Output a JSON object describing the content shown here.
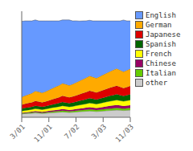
{
  "chart_data": {
    "type": "area",
    "stacked": true,
    "categories": [
      "3/01",
      null,
      null,
      null,
      null,
      null,
      null,
      null,
      "11/01",
      null,
      null,
      null,
      null,
      null,
      null,
      null,
      "7/02",
      null,
      null,
      null,
      null,
      null,
      null,
      null,
      "3/03",
      null,
      null,
      null,
      null,
      null,
      null,
      null,
      "11/03"
    ],
    "series": [
      {
        "name": "other",
        "color": "#cccccc",
        "values": [
          3.5,
          3.8,
          4.0,
          4.2,
          4.5,
          4.3,
          4.0,
          4.2,
          4.5,
          4.8,
          5.0,
          5.2,
          5.5,
          5.3,
          5.0,
          5.2,
          5.5,
          5.8,
          6.0,
          6.2,
          6.5,
          6.3,
          6.0,
          6.2,
          6.5,
          6.8,
          7.0,
          7.2,
          7.5,
          7.3,
          7.0,
          7.2,
          7.5
        ]
      },
      {
        "name": "Italian",
        "color": "#66cc00",
        "values": [
          0.5,
          0.6,
          0.7,
          0.8,
          0.9,
          0.8,
          0.8,
          0.9,
          1.0,
          1.1,
          1.2,
          1.3,
          1.4,
          1.3,
          1.2,
          1.3,
          1.4,
          1.5,
          1.6,
          1.7,
          1.8,
          1.7,
          1.6,
          1.7,
          1.8,
          1.9,
          2.0,
          2.1,
          2.2,
          2.1,
          2.0,
          2.1,
          2.2
        ]
      },
      {
        "name": "Chinese",
        "color": "#990066",
        "values": [
          0.5,
          0.6,
          0.7,
          0.8,
          1.0,
          1.0,
          0.9,
          1.0,
          1.1,
          1.2,
          1.3,
          1.4,
          1.6,
          1.5,
          1.4,
          1.5,
          1.6,
          1.7,
          1.8,
          2.0,
          2.2,
          2.1,
          2.0,
          2.2,
          2.4,
          2.6,
          2.8,
          2.9,
          3.0,
          2.8,
          2.7,
          2.8,
          2.9
        ]
      },
      {
        "name": "French",
        "color": "#ffff00",
        "values": [
          2.0,
          2.1,
          2.2,
          2.3,
          2.5,
          2.4,
          2.3,
          2.4,
          2.6,
          2.8,
          3.0,
          3.2,
          3.4,
          3.3,
          3.2,
          3.3,
          3.5,
          3.7,
          3.9,
          4.1,
          4.3,
          4.2,
          4.1,
          4.3,
          4.5,
          4.7,
          4.9,
          5.1,
          5.3,
          5.1,
          4.9,
          5.1,
          5.3
        ]
      },
      {
        "name": "Spanish",
        "color": "#006600",
        "values": [
          2.5,
          2.6,
          2.7,
          2.8,
          3.0,
          2.9,
          2.8,
          2.9,
          3.1,
          3.3,
          3.5,
          3.7,
          4.0,
          3.9,
          3.8,
          3.9,
          4.1,
          4.3,
          4.5,
          4.7,
          4.9,
          4.8,
          4.7,
          4.9,
          5.1,
          5.3,
          5.5,
          5.7,
          5.9,
          5.7,
          5.5,
          5.7,
          5.9
        ]
      },
      {
        "name": "Japanese",
        "color": "#dd0000",
        "values": [
          4.0,
          4.2,
          4.4,
          4.6,
          4.9,
          4.8,
          4.7,
          4.8,
          5.0,
          5.3,
          5.6,
          5.9,
          6.3,
          6.2,
          6.1,
          6.2,
          6.5,
          6.8,
          7.1,
          7.4,
          7.7,
          7.5,
          7.3,
          7.5,
          7.8,
          8.1,
          8.4,
          8.6,
          8.8,
          8.5,
          8.2,
          8.4,
          8.6
        ]
      },
      {
        "name": "German",
        "color": "#ffaa00",
        "values": [
          8.0,
          8.5,
          9.0,
          9.5,
          10.5,
          10.2,
          10.0,
          10.5,
          11.0,
          11.5,
          12.0,
          12.5,
          13.0,
          12.8,
          12.5,
          13.0,
          13.5,
          14.0,
          14.5,
          15.0,
          15.5,
          15.2,
          15.0,
          15.5,
          16.0,
          16.5,
          17.0,
          17.5,
          18.0,
          17.5,
          17.0,
          17.5,
          18.0
        ]
      },
      {
        "name": "English",
        "color": "#6699ff",
        "values": [
          78.5,
          77.6,
          76.3,
          75.0,
          73.7,
          73.6,
          74.5,
          73.3,
          71.7,
          70.0,
          68.4,
          66.8,
          65.8,
          66.7,
          67.8,
          65.6,
          64.0,
          62.0,
          60.6,
          59.0,
          57.7,
          58.2,
          59.3,
          57.7,
          55.9,
          54.1,
          52.4,
          50.9,
          49.3,
          51.0,
          53.6,
          51.2,
          49.6
        ]
      }
    ],
    "ylim": [
      0,
      110
    ],
    "tick_labels": "x",
    "legend": "right"
  }
}
